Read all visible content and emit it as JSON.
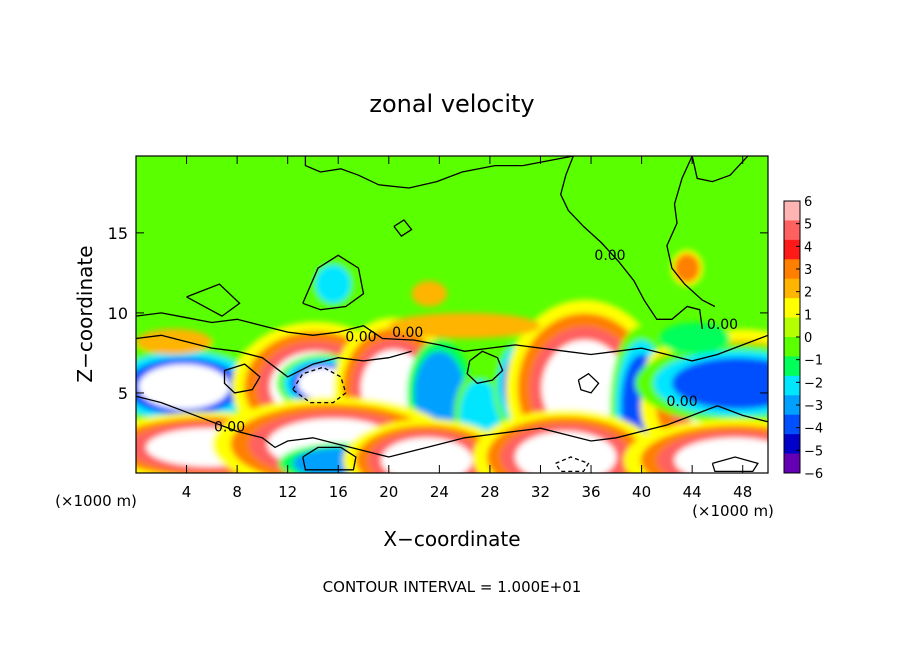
{
  "chart_data": {
    "type": "heatmap",
    "title": "zonal velocity",
    "xlabel": "X−coordinate",
    "ylabel": "Z−coordinate",
    "x_scale_note_left": "(×1000 m)",
    "x_scale_note_right": "(×1000 m)",
    "footer": "CONTOUR INTERVAL = 1.000E+01",
    "xlim": [
      0,
      50
    ],
    "ylim": [
      0,
      19.8
    ],
    "x_ticks": [
      "4",
      "8",
      "12",
      "16",
      "20",
      "24",
      "28",
      "32",
      "36",
      "40",
      "44",
      "48"
    ],
    "x_tick_values": [
      4,
      8,
      12,
      16,
      20,
      24,
      28,
      32,
      36,
      40,
      44,
      48
    ],
    "y_ticks": [
      "5",
      "10",
      "15"
    ],
    "y_tick_values": [
      5,
      10,
      15
    ],
    "colorbar": {
      "labels": [
        "6",
        "5",
        "4",
        "3",
        "2",
        "1",
        "0",
        "−1",
        "−2",
        "−3",
        "−4",
        "−5",
        "−6"
      ],
      "values": [
        6,
        5,
        4,
        3,
        2,
        1,
        0,
        -1,
        -2,
        -3,
        -4,
        -5,
        -6
      ],
      "colors": [
        "#ffb4b4",
        "#ff6060",
        "#ff1a1a",
        "#ff7f00",
        "#ffb400",
        "#ffff00",
        "#b4ff00",
        "#5aff00",
        "#00ff5a",
        "#00e6ff",
        "#00a0ff",
        "#0050ff",
        "#0000c8",
        "#6400b4"
      ]
    },
    "contour_labels": [
      {
        "text": "0.00",
        "x": 17.8,
        "y": 8.2
      },
      {
        "text": "0.00",
        "x": 21.5,
        "y": 8.5
      },
      {
        "text": "0.00",
        "x": 37.5,
        "y": 13.3
      },
      {
        "text": "0.00",
        "x": 46.4,
        "y": 9.0
      },
      {
        "text": "0.00",
        "x": 43.2,
        "y": 4.2
      },
      {
        "text": "0.00",
        "x": 7.4,
        "y": 2.6
      }
    ],
    "features": [
      {
        "kind": "blob",
        "value": 7,
        "x": 4.2,
        "y": 3.2,
        "rx": 4.2,
        "ry": 2.6
      },
      {
        "kind": "blob",
        "value": -5,
        "x": 4.0,
        "y": 4.5,
        "rx": 5.0,
        "ry": 2.6
      },
      {
        "kind": "blob",
        "value": -7,
        "x": 3.8,
        "y": 5.4,
        "rx": 3.6,
        "ry": 1.4
      },
      {
        "kind": "blob",
        "value": 7,
        "x": 14.2,
        "y": 5.4,
        "rx": 3.6,
        "ry": 2.2
      },
      {
        "kind": "blob",
        "value": -7,
        "x": 14.8,
        "y": 5.6,
        "rx": 2.0,
        "ry": 1.0
      },
      {
        "kind": "blob",
        "value": 7,
        "x": 20.4,
        "y": 5.3,
        "rx": 2.6,
        "ry": 2.4
      },
      {
        "kind": "blob",
        "value": -4,
        "x": 24.0,
        "y": 5.0,
        "rx": 2.0,
        "ry": 2.6
      },
      {
        "kind": "blob",
        "value": -3,
        "x": 27.2,
        "y": 3.6,
        "rx": 1.6,
        "ry": 2.2
      },
      {
        "kind": "blob",
        "value": -5,
        "x": 30.4,
        "y": 5.5,
        "rx": 1.4,
        "ry": 2.0
      },
      {
        "kind": "blob",
        "value": 7,
        "x": 35.5,
        "y": 5.3,
        "rx": 3.4,
        "ry": 3.0
      },
      {
        "kind": "blob",
        "value": -5,
        "x": 40.0,
        "y": 4.2,
        "rx": 1.6,
        "ry": 3.2
      },
      {
        "kind": "blob",
        "value": 3,
        "x": 42.2,
        "y": 6.1,
        "rx": 1.6,
        "ry": 1.4
      },
      {
        "kind": "blob",
        "value": 7,
        "x": 48.0,
        "y": 4.2,
        "rx": 4.4,
        "ry": 2.6
      },
      {
        "kind": "blob",
        "value": -5,
        "x": 47.6,
        "y": 5.6,
        "rx": 5.2,
        "ry": 1.6
      },
      {
        "kind": "blob",
        "value": 7,
        "x": 5.8,
        "y": 1.6,
        "rx": 5.0,
        "ry": 1.2
      },
      {
        "kind": "blob",
        "value": 7,
        "x": 15.6,
        "y": 1.8,
        "rx": 5.2,
        "ry": 1.6
      },
      {
        "kind": "blob",
        "value": -4,
        "x": 16.4,
        "y": 0.6,
        "rx": 4.0,
        "ry": 1.0
      },
      {
        "kind": "blob",
        "value": 7,
        "x": 23.0,
        "y": 0.8,
        "rx": 3.6,
        "ry": 1.4
      },
      {
        "kind": "blob",
        "value": 7,
        "x": 34.0,
        "y": 1.0,
        "rx": 4.0,
        "ry": 1.6
      },
      {
        "kind": "blob",
        "value": 7,
        "x": 47.4,
        "y": 0.8,
        "rx": 4.8,
        "ry": 1.4
      },
      {
        "kind": "blob",
        "value": -3,
        "x": 15.6,
        "y": 11.8,
        "rx": 1.4,
        "ry": 1.2
      },
      {
        "kind": "blob",
        "value": -2,
        "x": 44.2,
        "y": 8.4,
        "rx": 2.8,
        "ry": 1.0
      },
      {
        "kind": "blob",
        "value": 2,
        "x": 3.0,
        "y": 8.2,
        "rx": 3.0,
        "ry": 0.8
      },
      {
        "kind": "blob",
        "value": 2,
        "x": 23.2,
        "y": 11.2,
        "rx": 1.4,
        "ry": 0.8
      },
      {
        "kind": "blob",
        "value": 3,
        "x": 43.6,
        "y": 12.8,
        "rx": 1.0,
        "ry": 0.9
      },
      {
        "kind": "blob",
        "value": 2,
        "x": 26.0,
        "y": 9.2,
        "rx": 6.0,
        "ry": 0.8
      }
    ],
    "contours": [
      {
        "dashed": false,
        "points": [
          [
            0,
            9.8
          ],
          [
            2,
            10.0
          ],
          [
            4,
            9.7
          ],
          [
            6,
            9.4
          ],
          [
            8,
            9.6
          ],
          [
            10,
            9.2
          ],
          [
            12,
            8.8
          ],
          [
            14,
            8.6
          ],
          [
            16,
            8.8
          ],
          [
            18,
            9.2
          ],
          [
            19.5,
            8.4
          ],
          [
            22,
            8.3
          ],
          [
            24,
            8.0
          ],
          [
            26,
            7.6
          ],
          [
            28,
            7.8
          ],
          [
            30,
            8.0
          ],
          [
            32,
            7.8
          ],
          [
            34,
            7.6
          ],
          [
            36,
            7.4
          ],
          [
            38,
            7.6
          ],
          [
            40,
            7.8
          ],
          [
            42,
            7.4
          ],
          [
            44,
            7.0
          ],
          [
            46,
            7.4
          ],
          [
            48,
            8.0
          ],
          [
            50,
            8.6
          ]
        ]
      },
      {
        "dashed": false,
        "points": [
          [
            0,
            8.4
          ],
          [
            2,
            8.6
          ],
          [
            4,
            8.2
          ],
          [
            6,
            7.8
          ],
          [
            8,
            7.6
          ],
          [
            10,
            7.2
          ],
          [
            12,
            6.0
          ],
          [
            14,
            6.8
          ],
          [
            16,
            7.2
          ],
          [
            18,
            7.0
          ],
          [
            20,
            7.2
          ],
          [
            21.8,
            7.6
          ]
        ]
      },
      {
        "dashed": false,
        "points": [
          [
            0,
            4.8
          ],
          [
            2,
            4.4
          ],
          [
            4,
            3.8
          ],
          [
            6,
            3.2
          ],
          [
            8,
            2.6
          ],
          [
            10,
            2.2
          ],
          [
            11,
            1.6
          ],
          [
            12,
            2.0
          ],
          [
            14,
            2.2
          ],
          [
            16,
            1.8
          ],
          [
            18,
            1.4
          ],
          [
            20,
            1.0
          ],
          [
            22,
            1.4
          ],
          [
            24,
            1.8
          ],
          [
            26,
            2.2
          ],
          [
            28,
            2.4
          ],
          [
            30,
            2.6
          ],
          [
            32,
            2.8
          ],
          [
            34,
            2.4
          ],
          [
            36,
            2.0
          ],
          [
            38,
            2.2
          ],
          [
            40,
            2.6
          ],
          [
            42,
            3.0
          ],
          [
            44,
            3.6
          ],
          [
            46,
            4.2
          ],
          [
            48,
            3.6
          ],
          [
            50,
            3.2
          ]
        ]
      },
      {
        "dashed": false,
        "points": [
          [
            13.4,
            19.8
          ],
          [
            13.4,
            19.2
          ],
          [
            14.6,
            18.8
          ],
          [
            16.2,
            19.0
          ],
          [
            17.6,
            18.6
          ],
          [
            19.2,
            18.0
          ],
          [
            21.6,
            17.8
          ],
          [
            23.8,
            18.2
          ],
          [
            25.8,
            18.8
          ],
          [
            28.4,
            19.2
          ],
          [
            30.6,
            19.2
          ],
          [
            34.6,
            19.8
          ]
        ]
      },
      {
        "dashed": false,
        "points": [
          [
            34.6,
            19.8
          ],
          [
            34.0,
            18.6
          ],
          [
            33.6,
            17.4
          ],
          [
            34.2,
            16.4
          ],
          [
            35.4,
            15.4
          ],
          [
            36.8,
            14.4
          ],
          [
            38.2,
            13.2
          ],
          [
            39.4,
            12.0
          ],
          [
            40.2,
            10.8
          ],
          [
            41.2,
            9.6
          ],
          [
            42.4,
            9.6
          ],
          [
            43.6,
            10.4
          ],
          [
            44.6,
            10.2
          ],
          [
            44.8,
            9.0
          ]
        ]
      },
      {
        "dashed": false,
        "points": [
          [
            44.0,
            19.8
          ],
          [
            43.2,
            18.4
          ],
          [
            42.6,
            16.8
          ],
          [
            42.8,
            15.6
          ],
          [
            42.0,
            14.2
          ],
          [
            42.4,
            12.8
          ],
          [
            43.4,
            11.8
          ],
          [
            44.8,
            10.8
          ],
          [
            45.8,
            10.4
          ]
        ]
      },
      {
        "dashed": false,
        "points": [
          [
            48.4,
            19.8
          ],
          [
            47.0,
            18.6
          ],
          [
            45.6,
            18.2
          ],
          [
            44.4,
            18.4
          ],
          [
            44.0,
            19.8
          ]
        ]
      },
      {
        "dashed": false,
        "points": [
          [
            13.2,
            10.6
          ],
          [
            14.4,
            12.8
          ],
          [
            16.0,
            13.6
          ],
          [
            17.6,
            12.8
          ],
          [
            18.0,
            11.2
          ],
          [
            16.6,
            10.4
          ],
          [
            14.6,
            10.2
          ],
          [
            13.2,
            10.6
          ]
        ]
      },
      {
        "dashed": false,
        "points": [
          [
            20.4,
            15.4
          ],
          [
            21.2,
            15.8
          ],
          [
            21.8,
            15.2
          ],
          [
            21.0,
            14.8
          ],
          [
            20.4,
            15.4
          ]
        ]
      },
      {
        "dashed": false,
        "points": [
          [
            4.0,
            11.0
          ],
          [
            6.6,
            11.8
          ],
          [
            8.2,
            10.6
          ],
          [
            6.8,
            9.8
          ],
          [
            4.0,
            11.0
          ]
        ]
      },
      {
        "dashed": false,
        "points": [
          [
            26.4,
            7.0
          ],
          [
            27.4,
            7.6
          ],
          [
            28.6,
            7.2
          ],
          [
            29.0,
            6.4
          ],
          [
            28.2,
            5.8
          ],
          [
            27.0,
            5.6
          ],
          [
            26.2,
            6.2
          ],
          [
            26.4,
            7.0
          ]
        ]
      },
      {
        "dashed": false,
        "points": [
          [
            7.0,
            6.4
          ],
          [
            8.6,
            6.8
          ],
          [
            9.8,
            6.0
          ],
          [
            9.2,
            5.2
          ],
          [
            7.8,
            5.0
          ],
          [
            7.0,
            5.6
          ],
          [
            7.0,
            6.4
          ]
        ]
      },
      {
        "dashed": true,
        "points": [
          [
            12.4,
            5.2
          ],
          [
            13.2,
            6.2
          ],
          [
            14.8,
            6.6
          ],
          [
            16.2,
            6.0
          ],
          [
            16.6,
            5.0
          ],
          [
            15.6,
            4.4
          ],
          [
            13.8,
            4.4
          ],
          [
            12.4,
            5.2
          ]
        ]
      },
      {
        "dashed": false,
        "points": [
          [
            13.2,
            1.0
          ],
          [
            14.4,
            1.6
          ],
          [
            16.2,
            1.6
          ],
          [
            17.4,
            1.0
          ],
          [
            17.2,
            0.2
          ],
          [
            13.4,
            0.2
          ],
          [
            13.2,
            1.0
          ]
        ]
      },
      {
        "dashed": false,
        "points": [
          [
            35.0,
            5.8
          ],
          [
            35.8,
            6.2
          ],
          [
            36.6,
            5.6
          ],
          [
            36.0,
            5.0
          ],
          [
            35.2,
            5.2
          ],
          [
            35.0,
            5.8
          ]
        ]
      },
      {
        "dashed": true,
        "points": [
          [
            33.2,
            0.6
          ],
          [
            34.4,
            1.0
          ],
          [
            35.8,
            0.6
          ],
          [
            35.4,
            0.1
          ],
          [
            33.6,
            0.1
          ],
          [
            33.2,
            0.6
          ]
        ]
      },
      {
        "dashed": false,
        "points": [
          [
            45.6,
            0.6
          ],
          [
            47.4,
            1.0
          ],
          [
            49.2,
            0.6
          ],
          [
            48.8,
            0.1
          ],
          [
            45.8,
            0.1
          ],
          [
            45.6,
            0.6
          ]
        ]
      }
    ]
  }
}
